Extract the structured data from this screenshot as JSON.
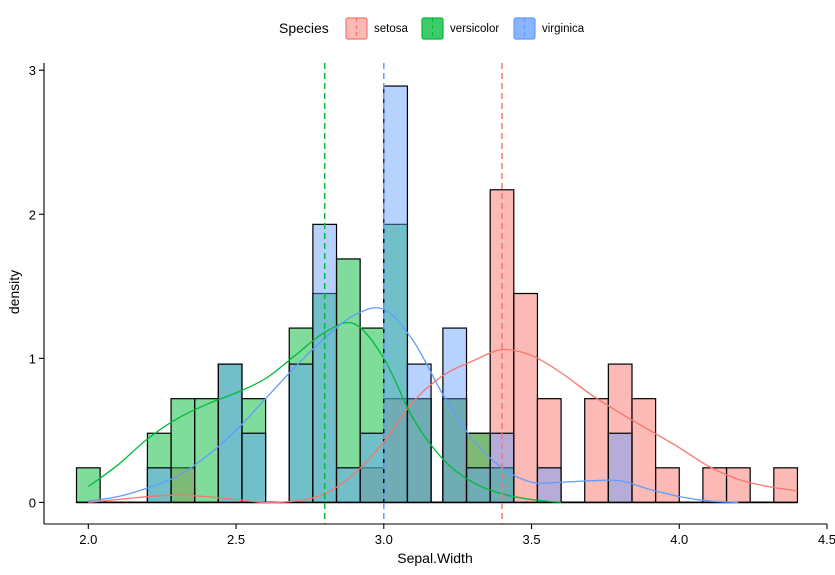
{
  "chart_data": {
    "type": "bar",
    "subtype": "overlaid-histogram-with-density",
    "xlabel": "Sepal.Width",
    "ylabel": "density",
    "xlim": [
      1.85,
      4.5
    ],
    "ylim": [
      -0.15,
      3.05
    ],
    "x_ticks": [
      2.0,
      2.5,
      3.0,
      3.5,
      4.0,
      4.5
    ],
    "x_tick_labels": [
      "2.0",
      "2.5",
      "3.0",
      "3.5",
      "4.0",
      "4.5"
    ],
    "y_ticks": [
      0,
      1,
      2,
      3
    ],
    "y_tick_labels": [
      "0",
      "1",
      "2",
      "3"
    ],
    "bin_width": 0.08,
    "grid": false,
    "legend": {
      "title": "Species",
      "position": "top",
      "entries": [
        "setosa",
        "versicolor",
        "virginica"
      ]
    },
    "series": [
      {
        "name": "setosa",
        "color": "#F8766D",
        "mean": 3.4,
        "bins": [
          {
            "x0": 2.28,
            "x1": 2.36,
            "density": 0.24
          },
          {
            "x0": 2.92,
            "x1": 3.0,
            "density": 0.24
          },
          {
            "x0": 3.0,
            "x1": 3.08,
            "density": 0.72
          },
          {
            "x0": 3.08,
            "x1": 3.16,
            "density": 0.72
          },
          {
            "x0": 3.2,
            "x1": 3.28,
            "density": 0.72
          },
          {
            "x0": 3.28,
            "x1": 3.36,
            "density": 0.48
          },
          {
            "x0": 3.36,
            "x1": 3.44,
            "density": 2.17
          },
          {
            "x0": 3.44,
            "x1": 3.52,
            "density": 1.45
          },
          {
            "x0": 3.52,
            "x1": 3.6,
            "density": 0.72
          },
          {
            "x0": 3.68,
            "x1": 3.76,
            "density": 0.72
          },
          {
            "x0": 3.76,
            "x1": 3.84,
            "density": 0.96
          },
          {
            "x0": 3.84,
            "x1": 3.92,
            "density": 0.72
          },
          {
            "x0": 3.92,
            "x1": 4.0,
            "density": 0.24
          },
          {
            "x0": 4.08,
            "x1": 4.16,
            "density": 0.24
          },
          {
            "x0": 4.16,
            "x1": 4.24,
            "density": 0.24
          },
          {
            "x0": 4.32,
            "x1": 4.4,
            "density": 0.24
          }
        ],
        "density_x": [
          2.0,
          2.1,
          2.2,
          2.3,
          2.4,
          2.5,
          2.6,
          2.7,
          2.8,
          2.9,
          3.0,
          3.1,
          3.2,
          3.3,
          3.4,
          3.5,
          3.6,
          3.7,
          3.8,
          3.9,
          4.0,
          4.1,
          4.2,
          4.3,
          4.4
        ],
        "density_y": [
          0.0,
          0.02,
          0.04,
          0.05,
          0.04,
          0.02,
          0.0,
          0.01,
          0.06,
          0.2,
          0.42,
          0.7,
          0.88,
          0.98,
          1.06,
          1.02,
          0.9,
          0.75,
          0.62,
          0.5,
          0.38,
          0.25,
          0.16,
          0.11,
          0.08
        ]
      },
      {
        "name": "versicolor",
        "color": "#00BA38",
        "mean": 2.8,
        "bins": [
          {
            "x0": 1.96,
            "x1": 2.04,
            "density": 0.24
          },
          {
            "x0": 2.2,
            "x1": 2.28,
            "density": 0.48
          },
          {
            "x0": 2.28,
            "x1": 2.36,
            "density": 0.72
          },
          {
            "x0": 2.36,
            "x1": 2.44,
            "density": 0.72
          },
          {
            "x0": 2.44,
            "x1": 2.52,
            "density": 0.96
          },
          {
            "x0": 2.52,
            "x1": 2.6,
            "density": 0.72
          },
          {
            "x0": 2.68,
            "x1": 2.76,
            "density": 1.21
          },
          {
            "x0": 2.76,
            "x1": 2.84,
            "density": 1.45
          },
          {
            "x0": 2.84,
            "x1": 2.92,
            "density": 1.69
          },
          {
            "x0": 2.92,
            "x1": 3.0,
            "density": 1.21
          },
          {
            "x0": 3.0,
            "x1": 3.08,
            "density": 1.93
          },
          {
            "x0": 3.08,
            "x1": 3.16,
            "density": 0.72
          },
          {
            "x0": 3.2,
            "x1": 3.28,
            "density": 0.72
          },
          {
            "x0": 3.28,
            "x1": 3.36,
            "density": 0.48
          },
          {
            "x0": 3.36,
            "x1": 3.44,
            "density": 0.24
          }
        ],
        "density_x": [
          2.0,
          2.1,
          2.2,
          2.3,
          2.4,
          2.5,
          2.6,
          2.7,
          2.8,
          2.9,
          3.0,
          3.1,
          3.2,
          3.3,
          3.4,
          3.5,
          3.6
        ],
        "density_y": [
          0.11,
          0.26,
          0.44,
          0.58,
          0.68,
          0.76,
          0.86,
          1.02,
          1.18,
          1.24,
          1.0,
          0.58,
          0.3,
          0.14,
          0.06,
          0.02,
          0.0
        ]
      },
      {
        "name": "virginica",
        "color": "#619CFF",
        "mean": 3.0,
        "bins": [
          {
            "x0": 2.2,
            "x1": 2.28,
            "density": 0.24
          },
          {
            "x0": 2.44,
            "x1": 2.52,
            "density": 0.96
          },
          {
            "x0": 2.52,
            "x1": 2.6,
            "density": 0.48
          },
          {
            "x0": 2.68,
            "x1": 2.76,
            "density": 0.96
          },
          {
            "x0": 2.76,
            "x1": 2.84,
            "density": 1.93
          },
          {
            "x0": 2.84,
            "x1": 2.92,
            "density": 0.24
          },
          {
            "x0": 2.92,
            "x1": 3.0,
            "density": 0.48
          },
          {
            "x0": 3.0,
            "x1": 3.08,
            "density": 2.89
          },
          {
            "x0": 3.08,
            "x1": 3.16,
            "density": 0.96
          },
          {
            "x0": 3.2,
            "x1": 3.28,
            "density": 1.21
          },
          {
            "x0": 3.28,
            "x1": 3.36,
            "density": 0.24
          },
          {
            "x0": 3.36,
            "x1": 3.44,
            "density": 0.48
          },
          {
            "x0": 3.52,
            "x1": 3.6,
            "density": 0.24
          },
          {
            "x0": 3.76,
            "x1": 3.84,
            "density": 0.48
          }
        ],
        "density_x": [
          2.0,
          2.1,
          2.2,
          2.3,
          2.4,
          2.5,
          2.6,
          2.7,
          2.8,
          2.9,
          3.0,
          3.1,
          3.2,
          3.3,
          3.4,
          3.5,
          3.6,
          3.7,
          3.8,
          3.9,
          4.0,
          4.1,
          4.2
        ],
        "density_y": [
          0.01,
          0.04,
          0.1,
          0.18,
          0.32,
          0.5,
          0.72,
          0.94,
          1.14,
          1.3,
          1.34,
          1.12,
          0.75,
          0.44,
          0.24,
          0.14,
          0.14,
          0.15,
          0.15,
          0.09,
          0.04,
          0.01,
          0.0
        ]
      }
    ]
  }
}
